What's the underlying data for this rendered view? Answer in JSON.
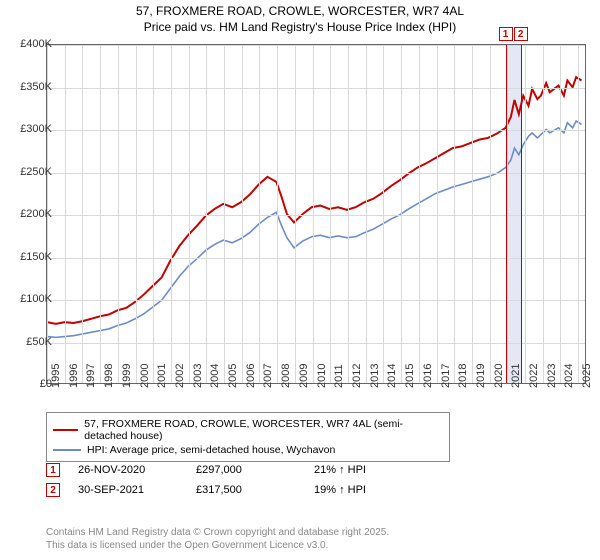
{
  "title_line1": "57, FROXMERE ROAD, CROWLE, WORCESTER, WR7 4AL",
  "title_line2": "Price paid vs. HM Land Registry's House Price Index (HPI)",
  "chart": {
    "type": "line",
    "ylim": [
      0,
      400000
    ],
    "ytick_step": 50000,
    "y_format_prefix": "£",
    "y_format_suffix": "K",
    "y_ticks": [
      "£0",
      "£50K",
      "£100K",
      "£150K",
      "£200K",
      "£250K",
      "£300K",
      "£350K",
      "£400K"
    ],
    "x_years": [
      1995,
      1996,
      1997,
      1998,
      1999,
      2000,
      2001,
      2002,
      2003,
      2004,
      2005,
      2006,
      2007,
      2008,
      2009,
      2010,
      2011,
      2012,
      2013,
      2014,
      2015,
      2016,
      2017,
      2018,
      2019,
      2020,
      2021,
      2022,
      2023,
      2024,
      2025
    ],
    "background_color": "#ffffff",
    "grid_color": "#d9d9d9",
    "highlight_band": {
      "x_start": 2020.9,
      "x_end": 2021.75,
      "fill": "#e4e8f4"
    },
    "markers": [
      {
        "num": "1",
        "x": 2020.9,
        "color": "#c10000"
      },
      {
        "num": "2",
        "x": 2021.75,
        "color": "#c10000"
      }
    ],
    "series": [
      {
        "name": "prop",
        "label": "57, FROXMERE ROAD, CROWLE, WORCESTER, WR7 4AL (semi-detached house)",
        "color": "#c10000",
        "width": 2,
        "points": [
          [
            1995,
            72000
          ],
          [
            1995.5,
            70000
          ],
          [
            1996,
            72000
          ],
          [
            1996.5,
            71000
          ],
          [
            1997,
            73000
          ],
          [
            1997.5,
            76000
          ],
          [
            1998,
            79000
          ],
          [
            1998.5,
            81000
          ],
          [
            1999,
            86000
          ],
          [
            1999.5,
            89000
          ],
          [
            2000,
            96000
          ],
          [
            2000.5,
            105000
          ],
          [
            2001,
            115000
          ],
          [
            2001.5,
            125000
          ],
          [
            2002,
            145000
          ],
          [
            2002.5,
            162000
          ],
          [
            2003,
            175000
          ],
          [
            2003.5,
            186000
          ],
          [
            2004,
            198000
          ],
          [
            2004.5,
            206000
          ],
          [
            2005,
            212000
          ],
          [
            2005.5,
            208000
          ],
          [
            2006,
            214000
          ],
          [
            2006.5,
            223000
          ],
          [
            2007,
            235000
          ],
          [
            2007.5,
            244000
          ],
          [
            2008,
            238000
          ],
          [
            2008.3,
            220000
          ],
          [
            2008.6,
            200000
          ],
          [
            2009,
            190000
          ],
          [
            2009.5,
            200000
          ],
          [
            2010,
            208000
          ],
          [
            2010.5,
            210000
          ],
          [
            2011,
            206000
          ],
          [
            2011.5,
            208000
          ],
          [
            2012,
            205000
          ],
          [
            2012.5,
            208000
          ],
          [
            2013,
            214000
          ],
          [
            2013.5,
            218000
          ],
          [
            2014,
            225000
          ],
          [
            2014.5,
            233000
          ],
          [
            2015,
            240000
          ],
          [
            2015.5,
            248000
          ],
          [
            2016,
            255000
          ],
          [
            2016.5,
            260000
          ],
          [
            2017,
            266000
          ],
          [
            2017.5,
            272000
          ],
          [
            2018,
            278000
          ],
          [
            2018.5,
            280000
          ],
          [
            2019,
            284000
          ],
          [
            2019.5,
            288000
          ],
          [
            2020,
            290000
          ],
          [
            2020.5,
            295000
          ],
          [
            2021,
            302000
          ],
          [
            2021.3,
            315000
          ],
          [
            2021.5,
            335000
          ],
          [
            2021.75,
            318000
          ],
          [
            2022,
            340000
          ],
          [
            2022.3,
            328000
          ],
          [
            2022.5,
            348000
          ],
          [
            2022.8,
            336000
          ],
          [
            2023,
            340000
          ],
          [
            2023.3,
            355000
          ],
          [
            2023.5,
            344000
          ],
          [
            2024,
            352000
          ],
          [
            2024.3,
            340000
          ],
          [
            2024.5,
            358000
          ],
          [
            2024.8,
            350000
          ],
          [
            2025,
            362000
          ],
          [
            2025.3,
            358000
          ]
        ]
      },
      {
        "name": "hpi",
        "label": "HPI: Average price, semi-detached house, Wychavon",
        "color": "#6a8cc7",
        "width": 1.6,
        "points": [
          [
            1995,
            55000
          ],
          [
            1995.5,
            54000
          ],
          [
            1996,
            55000
          ],
          [
            1996.5,
            56000
          ],
          [
            1997,
            58000
          ],
          [
            1997.5,
            60000
          ],
          [
            1998,
            62000
          ],
          [
            1998.5,
            64000
          ],
          [
            1999,
            68000
          ],
          [
            1999.5,
            71000
          ],
          [
            2000,
            76000
          ],
          [
            2000.5,
            82000
          ],
          [
            2001,
            90000
          ],
          [
            2001.5,
            98000
          ],
          [
            2002,
            112000
          ],
          [
            2002.5,
            126000
          ],
          [
            2003,
            138000
          ],
          [
            2003.5,
            147000
          ],
          [
            2004,
            157000
          ],
          [
            2004.5,
            164000
          ],
          [
            2005,
            169000
          ],
          [
            2005.5,
            166000
          ],
          [
            2006,
            171000
          ],
          [
            2006.5,
            178000
          ],
          [
            2007,
            188000
          ],
          [
            2007.5,
            196000
          ],
          [
            2008,
            202000
          ],
          [
            2008.3,
            186000
          ],
          [
            2008.6,
            172000
          ],
          [
            2009,
            160000
          ],
          [
            2009.5,
            168000
          ],
          [
            2010,
            173000
          ],
          [
            2010.5,
            175000
          ],
          [
            2011,
            172000
          ],
          [
            2011.5,
            174000
          ],
          [
            2012,
            172000
          ],
          [
            2012.5,
            173000
          ],
          [
            2013,
            178000
          ],
          [
            2013.5,
            182000
          ],
          [
            2014,
            188000
          ],
          [
            2014.5,
            194000
          ],
          [
            2015,
            199000
          ],
          [
            2015.5,
            206000
          ],
          [
            2016,
            212000
          ],
          [
            2016.5,
            218000
          ],
          [
            2017,
            224000
          ],
          [
            2017.5,
            228000
          ],
          [
            2018,
            232000
          ],
          [
            2018.5,
            235000
          ],
          [
            2019,
            238000
          ],
          [
            2019.5,
            241000
          ],
          [
            2020,
            244000
          ],
          [
            2020.5,
            248000
          ],
          [
            2021,
            255000
          ],
          [
            2021.3,
            264000
          ],
          [
            2021.5,
            278000
          ],
          [
            2021.75,
            270000
          ],
          [
            2022,
            282000
          ],
          [
            2022.3,
            292000
          ],
          [
            2022.5,
            296000
          ],
          [
            2022.8,
            290000
          ],
          [
            2023,
            294000
          ],
          [
            2023.3,
            300000
          ],
          [
            2023.5,
            296000
          ],
          [
            2024,
            302000
          ],
          [
            2024.3,
            296000
          ],
          [
            2024.5,
            308000
          ],
          [
            2024.8,
            302000
          ],
          [
            2025,
            310000
          ],
          [
            2025.3,
            306000
          ]
        ]
      }
    ]
  },
  "data_rows": [
    {
      "num": "1",
      "date": "26-NOV-2020",
      "price": "£297,000",
      "delta": "21% ↑ HPI",
      "color": "#c10000"
    },
    {
      "num": "2",
      "date": "30-SEP-2021",
      "price": "£317,500",
      "delta": "19% ↑ HPI",
      "color": "#c10000"
    }
  ],
  "footer_line1": "Contains HM Land Registry data © Crown copyright and database right 2025.",
  "footer_line2": "This data is licensed under the Open Government Licence v3.0."
}
